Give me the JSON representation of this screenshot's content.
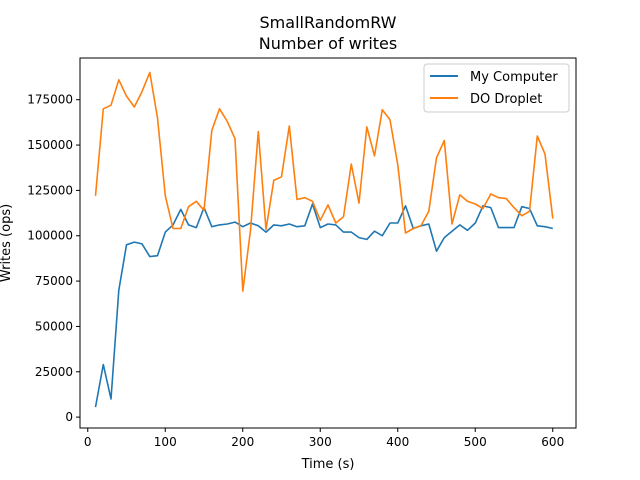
{
  "chart_data": {
    "type": "line",
    "title": "SmallRandomRW",
    "subtitle": "Number of writes",
    "xlabel": "Time (s)",
    "ylabel": "Writes (ops)",
    "xlim": [
      -10,
      630
    ],
    "ylim": [
      -6000,
      198000
    ],
    "xticks": [
      0,
      100,
      200,
      300,
      400,
      500,
      600
    ],
    "yticks": [
      0,
      25000,
      50000,
      75000,
      100000,
      125000,
      150000,
      175000
    ],
    "grid": false,
    "legend_position": "top-right",
    "series": [
      {
        "name": "My Computer",
        "color": "#1f77b4",
        "x": [
          10,
          20,
          30,
          40,
          50,
          60,
          70,
          80,
          90,
          100,
          110,
          120,
          130,
          140,
          150,
          160,
          170,
          180,
          190,
          200,
          210,
          220,
          230,
          240,
          250,
          260,
          270,
          280,
          290,
          300,
          310,
          320,
          330,
          340,
          350,
          360,
          370,
          380,
          390,
          400,
          410,
          420,
          430,
          440,
          450,
          460,
          470,
          480,
          490,
          500,
          510,
          520,
          530,
          540,
          550,
          560,
          570,
          580,
          590,
          600
        ],
        "values": [
          5500,
          29000,
          10000,
          70000,
          95000,
          96500,
          95500,
          88500,
          89000,
          102000,
          106000,
          114500,
          106000,
          104500,
          115500,
          105000,
          106000,
          106500,
          107500,
          105000,
          107000,
          105500,
          102000,
          106000,
          105500,
          106500,
          105000,
          105500,
          117500,
          104500,
          106500,
          106000,
          102000,
          102000,
          99000,
          98000,
          102500,
          100000,
          107000,
          107000,
          116500,
          104000,
          105500,
          106500,
          91500,
          99000,
          102500,
          106000,
          103000,
          107000,
          116500,
          115500,
          104500,
          104500,
          104500,
          116000,
          115000,
          105500,
          105000,
          104000
        ]
      },
      {
        "name": "DO Droplet",
        "color": "#ff7f0e",
        "x": [
          10,
          20,
          30,
          40,
          50,
          60,
          70,
          80,
          90,
          100,
          110,
          120,
          130,
          140,
          150,
          160,
          170,
          180,
          190,
          200,
          210,
          220,
          230,
          240,
          250,
          260,
          270,
          280,
          290,
          300,
          310,
          320,
          330,
          340,
          350,
          360,
          370,
          380,
          390,
          400,
          410,
          420,
          430,
          440,
          450,
          460,
          470,
          480,
          490,
          500,
          510,
          520,
          530,
          540,
          550,
          560,
          570,
          580,
          590,
          600
        ],
        "values": [
          122000,
          170000,
          172000,
          186000,
          177000,
          171000,
          179500,
          190000,
          165000,
          122000,
          104000,
          104000,
          116000,
          119000,
          114000,
          158000,
          170000,
          163000,
          153500,
          69500,
          103000,
          157500,
          103500,
          130500,
          132500,
          160500,
          120000,
          121000,
          119000,
          108500,
          117000,
          107000,
          110500,
          139500,
          118000,
          160000,
          144000,
          169500,
          164000,
          139000,
          101500,
          104000,
          105500,
          113500,
          143000,
          152500,
          106500,
          122500,
          119000,
          117500,
          115000,
          123000,
          121000,
          120500,
          115500,
          111000,
          113500,
          155000,
          145000,
          109500
        ]
      }
    ]
  }
}
